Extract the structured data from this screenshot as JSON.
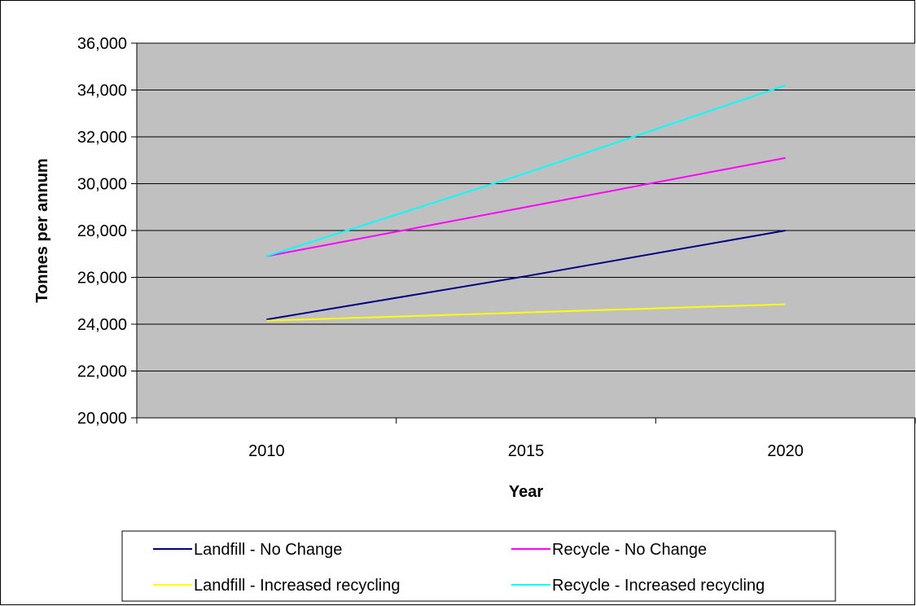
{
  "chart_data": {
    "type": "line",
    "categories": [
      "2010",
      "2015",
      "2020"
    ],
    "xlabel": "Year",
    "ylabel": "Tonnes per annum",
    "ylim": [
      20000,
      36000
    ],
    "y_ticks": [
      20000,
      22000,
      24000,
      26000,
      28000,
      30000,
      32000,
      34000,
      36000
    ],
    "y_tick_labels": [
      "20,000",
      "22,000",
      "24,000",
      "26,000",
      "28,000",
      "30,000",
      "32,000",
      "34,000",
      "36,000"
    ],
    "grid": true,
    "plot_background": "#c0c0c0",
    "legend_position": "bottom",
    "series": [
      {
        "name": "Landfill - No Change",
        "color": "#000080",
        "values": [
          24200,
          26050,
          28000
        ]
      },
      {
        "name": "Recycle - No Change",
        "color": "#ff00ff",
        "values": [
          26900,
          29000,
          31100
        ]
      },
      {
        "name": "Landfill - Increased recycling",
        "color": "#ffff00",
        "values": [
          24150,
          24500,
          24850
        ]
      },
      {
        "name": "Recycle - Increased recycling",
        "color": "#00ffff",
        "values": [
          26900,
          30450,
          34200
        ]
      }
    ]
  }
}
